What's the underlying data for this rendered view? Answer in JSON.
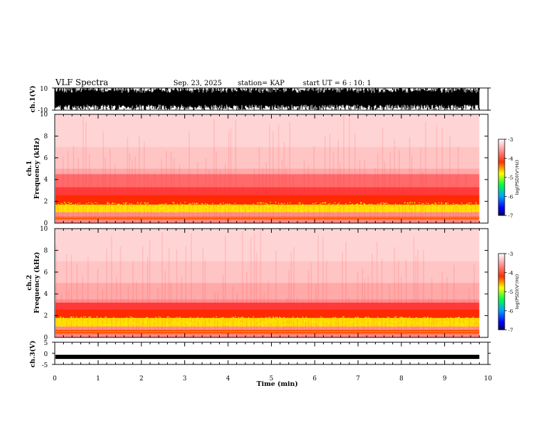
{
  "header": {
    "title": "VLF Spectra",
    "date": "Sep. 23, 2025",
    "station": "station= KAP",
    "start": "start  UT =   6 : 10: 1"
  },
  "chart_data": [
    {
      "type": "line",
      "name": "waveform-ch1",
      "ylabel": "ch.1(V)",
      "ylim": [
        -10,
        10
      ],
      "yticks": [
        "10",
        "-10"
      ],
      "xlim": [
        0,
        10
      ],
      "data_extent_min": 9.8,
      "note": "dense noise waveform saturating near +/-10 V"
    },
    {
      "type": "heatmap",
      "name": "spectrogram-ch1",
      "ylabel_top": "ch.1",
      "ylabel": "Frequency (kHz)",
      "ylim": [
        0,
        10
      ],
      "yticks": [
        "0",
        "2",
        "4",
        "6",
        "8",
        "10"
      ],
      "xlim": [
        0,
        10
      ],
      "data_extent_min": 9.8,
      "bands_khz": [
        [
          0.3,
          0.6,
          -4.2
        ],
        [
          1.0,
          1.7,
          -4.4
        ],
        [
          1.7,
          2.6,
          -3.9
        ],
        [
          2.6,
          3.3,
          -3.5
        ],
        [
          3.3,
          4.5,
          -3.3
        ]
      ],
      "colorbar": {
        "label": "log(PSD)(V²/Hz)",
        "range": [
          -7,
          -3
        ],
        "ticks": [
          "-3",
          "-4",
          "-5",
          "-6",
          "-7"
        ]
      }
    },
    {
      "type": "heatmap",
      "name": "spectrogram-ch2",
      "ylabel_top": "ch.2",
      "ylabel": "Frequency (kHz)",
      "ylim": [
        0,
        10
      ],
      "yticks": [
        "0",
        "2",
        "4",
        "6",
        "8",
        "10"
      ],
      "xlim": [
        0,
        10
      ],
      "data_extent_min": 9.8,
      "bands_khz": [
        [
          0.3,
          0.7,
          -4.2
        ],
        [
          1.0,
          1.8,
          -4.4
        ],
        [
          1.8,
          2.6,
          -3.9
        ],
        [
          2.6,
          3.2,
          -3.5
        ]
      ],
      "colorbar": {
        "label": "log(PSD)(V²/Hz)",
        "range": [
          -7,
          -3
        ],
        "ticks": [
          "-3",
          "-4",
          "-5",
          "-6",
          "-7"
        ]
      }
    },
    {
      "type": "line",
      "name": "waveform-ch3",
      "ylabel": "ch.3(V)",
      "ylim": [
        -5,
        5
      ],
      "yticks": [
        "5",
        "0",
        "-5"
      ],
      "xlim": [
        0,
        10
      ],
      "data_extent_min": 9.8,
      "level_v": -1.6,
      "xlabel": "Time (min)",
      "xticks": [
        "0",
        "1",
        "2",
        "3",
        "4",
        "5",
        "6",
        "7",
        "8",
        "9",
        "10"
      ]
    }
  ],
  "colors": {
    "axis": "#000000",
    "ramp": [
      "#000080",
      "#0000ff",
      "#00ffff",
      "#00ff00",
      "#ffff00",
      "#ff0000",
      "#ffffff"
    ]
  }
}
